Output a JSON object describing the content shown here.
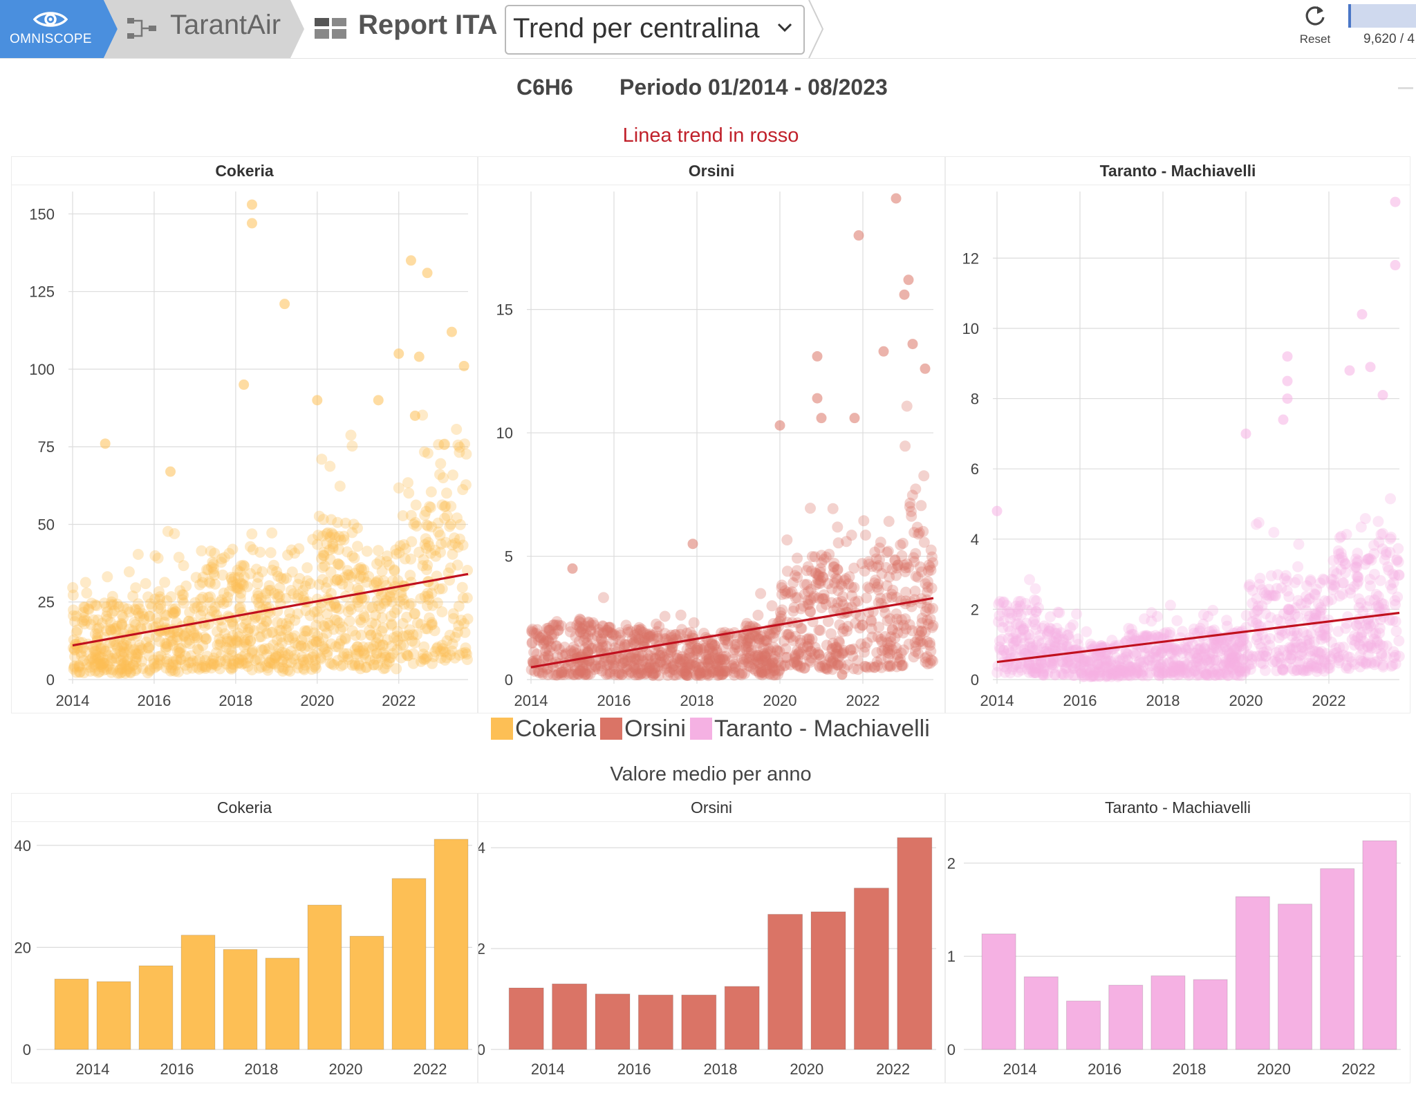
{
  "topbar": {
    "brand": "OMNISCOPE",
    "crumb_project": "TarantAir",
    "crumb_report": "Report ITA",
    "view_select_value": "Trend per centralina",
    "reset_label": "Reset",
    "record_count": "9,620 / 4",
    "icons": {
      "brand": "eye-icon",
      "project": "workflow-icon",
      "report": "dashboard-grid-icon",
      "dropdown": "chevron-down-icon",
      "reset": "refresh-icon"
    }
  },
  "header": {
    "pollutant": "C6H6",
    "period": "Periodo 01/2014 - 08/2023",
    "trend_note": "Linea trend in rosso"
  },
  "legend": {
    "items": [
      {
        "label": "Cokeria",
        "color": "#fdbf55"
      },
      {
        "label": "Orsini",
        "color": "#da7466"
      },
      {
        "label": "Taranto - Machiavelli",
        "color": "#f5b1e3"
      }
    ]
  },
  "bar_section_title": "Valore medio per anno",
  "chart_data": [
    {
      "type": "scatter",
      "title": "Cokeria",
      "color": "#fdbf55",
      "trend_color": "#c0101e",
      "x_range": [
        2014,
        2023.7
      ],
      "x_ticks": [
        2014,
        2016,
        2018,
        2020,
        2022
      ],
      "y_range": [
        0,
        155
      ],
      "y_ticks": [
        0,
        25,
        50,
        75,
        100,
        125,
        150
      ],
      "trend": {
        "x": [
          2014,
          2023.7
        ],
        "y": [
          11,
          34
        ]
      },
      "yearly_level": [
        14,
        13.5,
        16.5,
        22.5,
        20,
        18,
        28.5,
        22.5,
        34,
        41
      ],
      "outliers": [
        [
          2018.4,
          153
        ],
        [
          2018.4,
          147
        ],
        [
          2019.2,
          121
        ],
        [
          2022.3,
          135
        ],
        [
          2022.7,
          131
        ],
        [
          2023.3,
          112
        ],
        [
          2023.6,
          101
        ],
        [
          2022.0,
          105
        ],
        [
          2022.5,
          104
        ],
        [
          2018.2,
          95
        ],
        [
          2020.0,
          90
        ],
        [
          2021.5,
          90
        ],
        [
          2014.8,
          76
        ],
        [
          2016.4,
          67
        ],
        [
          2022.4,
          85
        ]
      ],
      "grid": true
    },
    {
      "type": "scatter",
      "title": "Orsini",
      "color": "#da7466",
      "trend_color": "#c0101e",
      "x_range": [
        2014,
        2023.7
      ],
      "x_ticks": [
        2014,
        2016,
        2018,
        2020,
        2022
      ],
      "y_range": [
        0,
        19.5
      ],
      "y_ticks": [
        0,
        5,
        10,
        15
      ],
      "trend": {
        "x": [
          2014,
          2023.7
        ],
        "y": [
          0.5,
          3.3
        ]
      },
      "yearly_level": [
        1.2,
        1.3,
        1.1,
        1.05,
        1.05,
        1.25,
        2.7,
        2.75,
        3.2,
        4.2
      ],
      "outliers": [
        [
          2022.8,
          19.5
        ],
        [
          2021.9,
          18
        ],
        [
          2023.1,
          16.2
        ],
        [
          2023.0,
          15.6
        ],
        [
          2023.2,
          13.6
        ],
        [
          2022.5,
          13.3
        ],
        [
          2020.9,
          13.1
        ],
        [
          2020.9,
          11.4
        ],
        [
          2021.0,
          10.6
        ],
        [
          2021.8,
          10.6
        ],
        [
          2020.0,
          10.3
        ],
        [
          2017.9,
          5.5
        ],
        [
          2015.0,
          4.5
        ],
        [
          2023.5,
          12.6
        ],
        [
          2021.5,
          0.2
        ]
      ],
      "grid": true
    },
    {
      "type": "scatter",
      "title": "Taranto - Machiavelli",
      "color": "#f5b1e3",
      "trend_color": "#c0101e",
      "x_range": [
        2014,
        2023.7
      ],
      "x_ticks": [
        2014,
        2016,
        2018,
        2020,
        2022
      ],
      "y_range": [
        0,
        13.7
      ],
      "y_ticks": [
        0,
        2,
        4,
        6,
        8,
        10,
        12
      ],
      "trend": {
        "x": [
          2014,
          2023.7
        ],
        "y": [
          0.5,
          1.9
        ]
      },
      "yearly_level": [
        1.25,
        0.8,
        0.55,
        0.7,
        0.8,
        0.75,
        1.65,
        1.55,
        1.95,
        2.25
      ],
      "outliers": [
        [
          2023.6,
          13.6
        ],
        [
          2023.6,
          11.8
        ],
        [
          2022.8,
          10.4
        ],
        [
          2021.0,
          9.2
        ],
        [
          2021.0,
          8.5
        ],
        [
          2021.0,
          8.0
        ],
        [
          2020.9,
          7.4
        ],
        [
          2020.0,
          7.0
        ],
        [
          2022.5,
          8.8
        ],
        [
          2023.3,
          8.1
        ],
        [
          2023.0,
          8.9
        ],
        [
          2014.0,
          4.8
        ]
      ],
      "grid": true
    },
    {
      "type": "bar",
      "title": "Cokeria",
      "color": "#fdbf55",
      "categories": [
        2014,
        2015,
        2016,
        2017,
        2018,
        2019,
        2020,
        2021,
        2022,
        2023
      ],
      "x_tick_labels": [
        "2014",
        "2016",
        "2018",
        "2020",
        "2022"
      ],
      "values": [
        13.8,
        13.3,
        16.4,
        22.4,
        19.6,
        17.9,
        28.3,
        22.2,
        33.5,
        41.2
      ],
      "y_range": [
        0,
        42
      ],
      "y_ticks": [
        0,
        20,
        40
      ],
      "grid": true
    },
    {
      "type": "bar",
      "title": "Orsini",
      "color": "#da7466",
      "categories": [
        2014,
        2015,
        2016,
        2017,
        2018,
        2019,
        2020,
        2021,
        2022,
        2023
      ],
      "x_tick_labels": [
        "2014",
        "2016",
        "2018",
        "2020",
        "2022"
      ],
      "values": [
        1.22,
        1.3,
        1.1,
        1.08,
        1.08,
        1.25,
        2.68,
        2.73,
        3.2,
        4.2
      ],
      "y_range": [
        0,
        4.25
      ],
      "y_ticks": [
        0,
        2,
        4
      ],
      "grid": true
    },
    {
      "type": "bar",
      "title": "Taranto - Machiavelli",
      "color": "#f5b1e3",
      "categories": [
        2014,
        2015,
        2016,
        2017,
        2018,
        2019,
        2020,
        2021,
        2022,
        2023
      ],
      "x_tick_labels": [
        "2014",
        "2016",
        "2018",
        "2020",
        "2022"
      ],
      "values": [
        1.24,
        0.78,
        0.52,
        0.69,
        0.79,
        0.75,
        1.64,
        1.56,
        1.94,
        2.24
      ],
      "y_range": [
        0,
        2.3
      ],
      "y_ticks": [
        0,
        1,
        2
      ],
      "grid": true
    }
  ]
}
